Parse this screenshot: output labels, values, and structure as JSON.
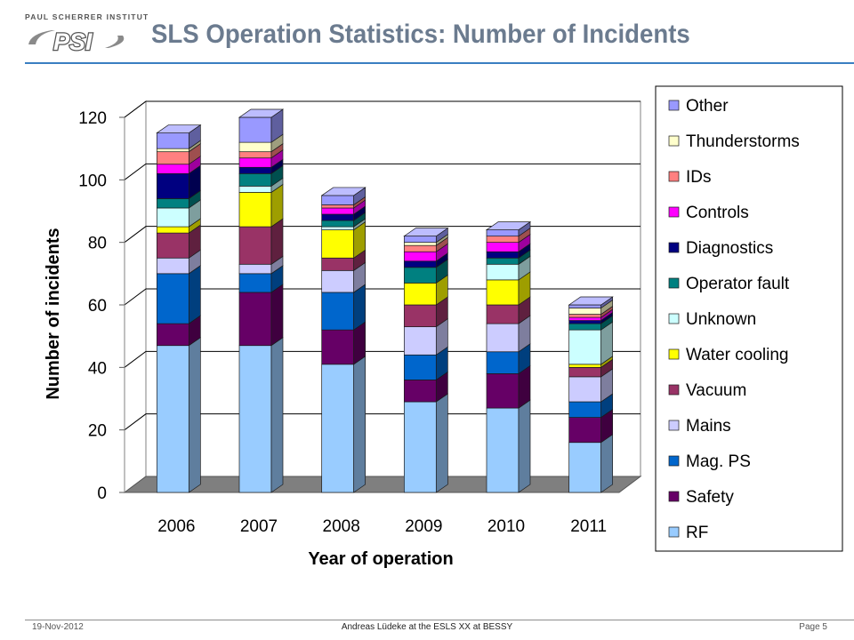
{
  "header": {
    "institute": "PAUL SCHERRER INSTITUT",
    "logo_mark": "PSI",
    "title": "SLS Operation Statistics: Number of Incidents"
  },
  "footer": {
    "date": "19-Nov-2012",
    "center": "Andreas Lüdeke at the ESLS XX at BESSY",
    "page": "Page 5"
  },
  "chart_data": {
    "type": "bar",
    "stacked": true,
    "three_d": true,
    "xlabel": "Year of operation",
    "ylabel": "Number of incidents",
    "ylim": [
      0,
      120
    ],
    "yticks": [
      0,
      20,
      40,
      60,
      80,
      100,
      120
    ],
    "grid": true,
    "legend_position": "right",
    "categories": [
      "2006",
      "2007",
      "2008",
      "2009",
      "2010",
      "2011"
    ],
    "series": [
      {
        "name": "RF",
        "color": "#99ccff",
        "values": [
          47,
          47,
          41,
          29,
          27,
          16
        ]
      },
      {
        "name": "Safety",
        "color": "#660066",
        "values": [
          7,
          17,
          11,
          7,
          11,
          8
        ]
      },
      {
        "name": "Mag. PS",
        "color": "#0066cc",
        "values": [
          16,
          6,
          12,
          8,
          7,
          5
        ]
      },
      {
        "name": "Mains",
        "color": "#ccccff",
        "values": [
          5,
          3,
          7,
          9,
          9,
          8
        ]
      },
      {
        "name": "Vacuum",
        "color": "#993366",
        "values": [
          8,
          12,
          4,
          7,
          6,
          3
        ]
      },
      {
        "name": "Water cooling",
        "color": "#ffff00",
        "values": [
          2,
          11,
          9,
          7,
          8,
          1
        ]
      },
      {
        "name": "Unknown",
        "color": "#ccffff",
        "values": [
          6,
          2,
          1,
          0,
          5,
          11
        ]
      },
      {
        "name": "Operator fault",
        "color": "#008080",
        "values": [
          3,
          4,
          2,
          5,
          2,
          2
        ]
      },
      {
        "name": "Diagnostics",
        "color": "#000080",
        "values": [
          8,
          2,
          2,
          2,
          2,
          1
        ]
      },
      {
        "name": "Controls",
        "color": "#ff00ff",
        "values": [
          3,
          3,
          2,
          3,
          3,
          1
        ]
      },
      {
        "name": "IDs",
        "color": "#ff8080",
        "values": [
          4,
          2,
          1,
          2,
          2,
          1
        ]
      },
      {
        "name": "Thunderstorms",
        "color": "#ffffcc",
        "values": [
          1,
          3,
          0,
          1,
          0,
          2
        ]
      },
      {
        "name": "Other",
        "color": "#9999ff",
        "values": [
          5,
          8,
          3,
          2,
          2,
          1
        ]
      }
    ]
  }
}
